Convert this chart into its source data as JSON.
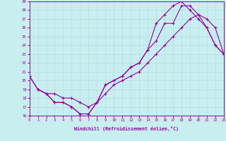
{
  "xlabel": "Windchill (Refroidissement éolien,°C)",
  "xlim": [
    0,
    23
  ],
  "ylim": [
    16,
    29
  ],
  "xticks": [
    0,
    1,
    2,
    3,
    4,
    5,
    6,
    7,
    8,
    9,
    10,
    11,
    12,
    13,
    14,
    15,
    16,
    17,
    18,
    19,
    20,
    21,
    22,
    23
  ],
  "yticks": [
    16,
    17,
    18,
    19,
    20,
    21,
    22,
    23,
    24,
    25,
    26,
    27,
    28,
    29
  ],
  "bg_color": "#c8eef0",
  "line_color": "#990099",
  "grid_color": "#aadddd",
  "curve1_x": [
    0,
    1,
    2,
    3,
    4,
    5,
    6,
    7,
    8,
    9,
    10,
    11,
    12,
    13,
    14,
    15,
    16,
    17,
    18,
    19,
    20,
    21,
    22,
    23
  ],
  "curve1_y": [
    20.5,
    19.0,
    18.5,
    17.5,
    17.5,
    17.0,
    16.2,
    16.2,
    17.5,
    19.5,
    20.0,
    20.5,
    21.5,
    22.0,
    23.5,
    24.5,
    26.5,
    26.5,
    28.5,
    28.5,
    27.5,
    26.0,
    24.0,
    23.0
  ],
  "curve2_x": [
    0,
    1,
    2,
    3,
    4,
    5,
    6,
    7,
    8,
    9,
    10,
    11,
    12,
    13,
    14,
    15,
    16,
    17,
    18,
    19,
    20,
    21,
    22,
    23
  ],
  "curve2_y": [
    20.5,
    19.0,
    18.5,
    17.5,
    17.5,
    17.0,
    16.2,
    16.2,
    17.5,
    19.5,
    20.0,
    20.5,
    21.5,
    22.0,
    23.5,
    26.5,
    27.5,
    28.5,
    29.0,
    28.0,
    27.0,
    26.0,
    24.0,
    23.0
  ],
  "curve3_x": [
    1,
    2,
    3,
    4,
    5,
    6,
    7,
    8,
    9,
    10,
    11,
    12,
    13,
    14,
    15,
    16,
    17,
    18,
    19,
    20,
    21,
    22,
    23
  ],
  "curve3_y": [
    19.0,
    18.5,
    18.5,
    18.0,
    18.0,
    17.5,
    17.0,
    17.5,
    18.5,
    19.5,
    20.0,
    20.5,
    21.0,
    22.0,
    23.0,
    24.0,
    25.0,
    26.0,
    27.0,
    27.5,
    27.0,
    26.0,
    23.0
  ]
}
